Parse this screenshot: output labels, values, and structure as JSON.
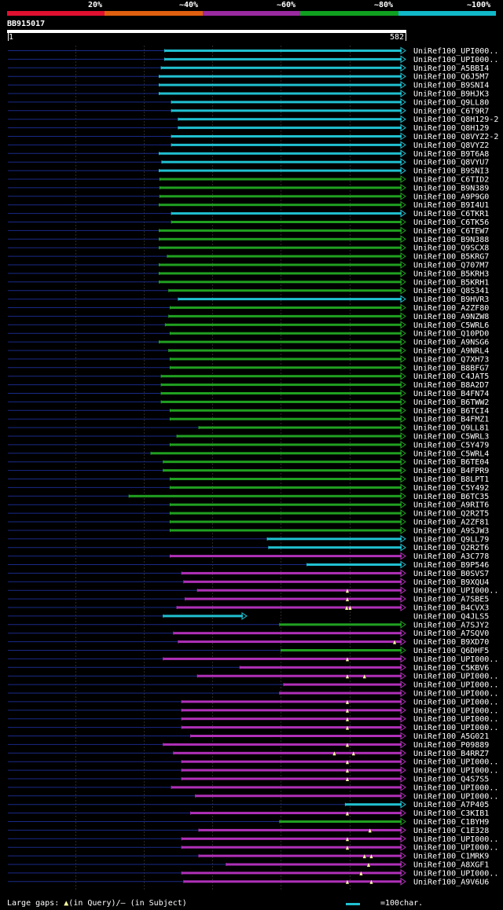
{
  "colors": {
    "bg": "#000000",
    "grid": "#2a2a2a",
    "leader": "#1a2a88",
    "segments": [
      "#e01030",
      "#e06010",
      "#9a2aa0",
      "#10a020",
      "#10b8c8"
    ],
    "byIdentity": {
      "magenta": "#b030b8",
      "green": "#20a020",
      "cyan": "#20c0d0"
    },
    "gapMarker": "#ffffa0"
  },
  "legend": {
    "identity_labels": [
      "20%",
      "~40%",
      "~60%",
      "~80%",
      "~100%"
    ],
    "large_gaps_label": "Large gaps:",
    "query_part": "(in Query)/",
    "subject_part": "– (in Subject)",
    "scale_label": "=100char."
  },
  "query": {
    "id": "BB915017",
    "start_label": "1",
    "end_label": "582"
  },
  "chart_data": {
    "type": "bar",
    "x_axis": {
      "min": 1,
      "max": 582
    },
    "grid_ticks": [
      100,
      200,
      300,
      400,
      500
    ],
    "hits": [
      {
        "name": "UniRef100_UPI000..",
        "start": 230,
        "end": 582,
        "cls": "cyan",
        "arrow": true,
        "gaps": []
      },
      {
        "name": "UniRef100_UPI000..",
        "start": 230,
        "end": 582,
        "cls": "cyan",
        "arrow": true,
        "gaps": []
      },
      {
        "name": "UniRef100_A5BBI4",
        "start": 225,
        "end": 582,
        "cls": "cyan",
        "arrow": true,
        "gaps": []
      },
      {
        "name": "UniRef100_Q6J5M7",
        "start": 222,
        "end": 582,
        "cls": "cyan",
        "arrow": true,
        "gaps": []
      },
      {
        "name": "UniRef100_B9SNI4",
        "start": 222,
        "end": 582,
        "cls": "cyan",
        "arrow": true,
        "gaps": []
      },
      {
        "name": "UniRef100_B9HJK3",
        "start": 222,
        "end": 582,
        "cls": "cyan",
        "arrow": true,
        "gaps": []
      },
      {
        "name": "UniRef100_Q9LL80",
        "start": 240,
        "end": 582,
        "cls": "cyan",
        "arrow": true,
        "gaps": []
      },
      {
        "name": "UniRef100_C6T9R7",
        "start": 240,
        "end": 582,
        "cls": "cyan",
        "arrow": true,
        "gaps": []
      },
      {
        "name": "UniRef100_Q8H129-2",
        "start": 250,
        "end": 582,
        "cls": "cyan",
        "arrow": true,
        "gaps": []
      },
      {
        "name": "UniRef100_Q8H129",
        "start": 250,
        "end": 582,
        "cls": "cyan",
        "arrow": true,
        "gaps": []
      },
      {
        "name": "UniRef100_Q8VYZ2-2",
        "start": 240,
        "end": 582,
        "cls": "cyan",
        "arrow": true,
        "gaps": []
      },
      {
        "name": "UniRef100_Q8VYZ2",
        "start": 240,
        "end": 582,
        "cls": "cyan",
        "arrow": true,
        "gaps": []
      },
      {
        "name": "UniRef100_B9T6A8",
        "start": 222,
        "end": 582,
        "cls": "cyan",
        "arrow": true,
        "gaps": []
      },
      {
        "name": "UniRef100_Q8VYU7",
        "start": 226,
        "end": 582,
        "cls": "cyan",
        "arrow": true,
        "gaps": []
      },
      {
        "name": "UniRef100_B9SNI3",
        "start": 222,
        "end": 582,
        "cls": "cyan",
        "arrow": true,
        "gaps": []
      },
      {
        "name": "UniRef100_C6TID2",
        "start": 223,
        "end": 582,
        "cls": "green",
        "arrow": true,
        "gaps": []
      },
      {
        "name": "UniRef100_B9N389",
        "start": 223,
        "end": 582,
        "cls": "green",
        "arrow": true,
        "gaps": []
      },
      {
        "name": "UniRef100_A9P9G0",
        "start": 223,
        "end": 582,
        "cls": "green",
        "arrow": true,
        "gaps": []
      },
      {
        "name": "UniRef100_B9I4U1",
        "start": 222,
        "end": 582,
        "cls": "green",
        "arrow": true,
        "gaps": []
      },
      {
        "name": "UniRef100_C6TKR1",
        "start": 240,
        "end": 582,
        "cls": "cyan",
        "arrow": true,
        "gaps": []
      },
      {
        "name": "UniRef100_C6TK56",
        "start": 240,
        "end": 582,
        "cls": "green",
        "arrow": true,
        "gaps": []
      },
      {
        "name": "UniRef100_C6TEW7",
        "start": 222,
        "end": 582,
        "cls": "green",
        "arrow": true,
        "gaps": []
      },
      {
        "name": "UniRef100_B9N388",
        "start": 222,
        "end": 582,
        "cls": "green",
        "arrow": true,
        "gaps": []
      },
      {
        "name": "UniRef100_Q9SCX8",
        "start": 222,
        "end": 582,
        "cls": "green",
        "arrow": true,
        "gaps": []
      },
      {
        "name": "UniRef100_B5KRG7",
        "start": 234,
        "end": 582,
        "cls": "green",
        "arrow": true,
        "gaps": []
      },
      {
        "name": "UniRef100_Q707M7",
        "start": 222,
        "end": 582,
        "cls": "green",
        "arrow": true,
        "gaps": []
      },
      {
        "name": "UniRef100_B5KRH3",
        "start": 222,
        "end": 582,
        "cls": "green",
        "arrow": true,
        "gaps": []
      },
      {
        "name": "UniRef100_B5KRH1",
        "start": 222,
        "end": 582,
        "cls": "green",
        "arrow": true,
        "gaps": []
      },
      {
        "name": "UniRef100_Q8S341",
        "start": 236,
        "end": 582,
        "cls": "green",
        "arrow": true,
        "gaps": []
      },
      {
        "name": "UniRef100_B9HVR3",
        "start": 250,
        "end": 582,
        "cls": "cyan",
        "arrow": true,
        "gaps": []
      },
      {
        "name": "UniRef100_A2ZF80",
        "start": 238,
        "end": 582,
        "cls": "green",
        "arrow": true,
        "gaps": []
      },
      {
        "name": "UniRef100_A9NZW8",
        "start": 236,
        "end": 582,
        "cls": "green",
        "arrow": true,
        "gaps": []
      },
      {
        "name": "UniRef100_C5WRL6",
        "start": 231,
        "end": 582,
        "cls": "green",
        "arrow": true,
        "gaps": []
      },
      {
        "name": "UniRef100_Q10PD0",
        "start": 238,
        "end": 582,
        "cls": "green",
        "arrow": true,
        "gaps": []
      },
      {
        "name": "UniRef100_A9NSG6",
        "start": 222,
        "end": 582,
        "cls": "green",
        "arrow": true,
        "gaps": []
      },
      {
        "name": "UniRef100_A9NRL4",
        "start": 236,
        "end": 582,
        "cls": "green",
        "arrow": true,
        "gaps": []
      },
      {
        "name": "UniRef100_Q7XH73",
        "start": 238,
        "end": 582,
        "cls": "green",
        "arrow": true,
        "gaps": []
      },
      {
        "name": "UniRef100_B8BFG7",
        "start": 238,
        "end": 582,
        "cls": "green",
        "arrow": true,
        "gaps": []
      },
      {
        "name": "UniRef100_C4JAT5",
        "start": 225,
        "end": 582,
        "cls": "green",
        "arrow": true,
        "gaps": []
      },
      {
        "name": "UniRef100_B8A2D7",
        "start": 225,
        "end": 582,
        "cls": "green",
        "arrow": true,
        "gaps": []
      },
      {
        "name": "UniRef100_B4FN74",
        "start": 225,
        "end": 582,
        "cls": "green",
        "arrow": true,
        "gaps": []
      },
      {
        "name": "UniRef100_B6TWW2",
        "start": 225,
        "end": 582,
        "cls": "green",
        "arrow": true,
        "gaps": []
      },
      {
        "name": "UniRef100_B6TCI4",
        "start": 238,
        "end": 582,
        "cls": "green",
        "arrow": true,
        "gaps": []
      },
      {
        "name": "UniRef100_B4FMZ1",
        "start": 238,
        "end": 582,
        "cls": "green",
        "arrow": true,
        "gaps": []
      },
      {
        "name": "UniRef100_Q9LL81",
        "start": 280,
        "end": 582,
        "cls": "green",
        "arrow": true,
        "gaps": []
      },
      {
        "name": "UniRef100_C5WRL3",
        "start": 248,
        "end": 582,
        "cls": "green",
        "arrow": true,
        "gaps": []
      },
      {
        "name": "UniRef100_C5Y479",
        "start": 238,
        "end": 582,
        "cls": "green",
        "arrow": true,
        "gaps": []
      },
      {
        "name": "UniRef100_C5WRL4",
        "start": 210,
        "end": 582,
        "cls": "green",
        "arrow": true,
        "gaps": []
      },
      {
        "name": "UniRef100_B6TE04",
        "start": 228,
        "end": 582,
        "cls": "green",
        "arrow": true,
        "gaps": []
      },
      {
        "name": "UniRef100_B4FPR9",
        "start": 228,
        "end": 582,
        "cls": "green",
        "arrow": true,
        "gaps": []
      },
      {
        "name": "UniRef100_B8LPT1",
        "start": 238,
        "end": 582,
        "cls": "green",
        "arrow": true,
        "gaps": []
      },
      {
        "name": "UniRef100_C5Y492",
        "start": 238,
        "end": 582,
        "cls": "green",
        "arrow": true,
        "gaps": []
      },
      {
        "name": "UniRef100_B6TC35",
        "start": 178,
        "end": 582,
        "cls": "green",
        "arrow": true,
        "gaps": []
      },
      {
        "name": "UniRef100_A9RIT6",
        "start": 238,
        "end": 582,
        "cls": "green",
        "arrow": true,
        "gaps": []
      },
      {
        "name": "UniRef100_Q2R2T5",
        "start": 238,
        "end": 582,
        "cls": "green",
        "arrow": true,
        "gaps": []
      },
      {
        "name": "UniRef100_A2ZF81",
        "start": 238,
        "end": 582,
        "cls": "green",
        "arrow": true,
        "gaps": []
      },
      {
        "name": "UniRef100_A9SJW3",
        "start": 238,
        "end": 582,
        "cls": "green",
        "arrow": true,
        "gaps": []
      },
      {
        "name": "UniRef100_Q9LL79",
        "start": 380,
        "end": 582,
        "cls": "cyan",
        "arrow": true,
        "gaps": []
      },
      {
        "name": "UniRef100_Q2R2T6",
        "start": 382,
        "end": 582,
        "cls": "cyan",
        "arrow": true,
        "gaps": []
      },
      {
        "name": "UniRef100_A3C778",
        "start": 238,
        "end": 582,
        "cls": "magenta",
        "arrow": true,
        "gaps": []
      },
      {
        "name": "UniRef100_B9P546",
        "start": 438,
        "end": 582,
        "cls": "cyan",
        "arrow": true,
        "gaps": []
      },
      {
        "name": "UniRef100_B0SVS7",
        "start": 255,
        "end": 582,
        "cls": "magenta",
        "arrow": true,
        "gaps": []
      },
      {
        "name": "UniRef100_B9XQU4",
        "start": 258,
        "end": 582,
        "cls": "magenta",
        "arrow": true,
        "gaps": []
      },
      {
        "name": "UniRef100_UPI000..",
        "start": 278,
        "end": 582,
        "cls": "magenta",
        "arrow": true,
        "gaps": [
          497
        ]
      },
      {
        "name": "UniRef100_A7SBE5",
        "start": 260,
        "end": 582,
        "cls": "magenta",
        "arrow": true,
        "gaps": [
          497
        ]
      },
      {
        "name": "UniRef100_B4CVX3",
        "start": 248,
        "end": 582,
        "cls": "magenta",
        "arrow": true,
        "gaps": [
          496,
          501
        ]
      },
      {
        "name": "UniRef100_Q4JLS5",
        "start": 228,
        "end": 350,
        "cls": "cyan",
        "arrow": true,
        "gaps": []
      },
      {
        "name": "UniRef100_A7SJY2",
        "start": 398,
        "end": 582,
        "cls": "green",
        "arrow": true,
        "gaps": []
      },
      {
        "name": "UniRef100_A7SQV0",
        "start": 243,
        "end": 582,
        "cls": "magenta",
        "arrow": true,
        "gaps": []
      },
      {
        "name": "UniRef100_B9XD70",
        "start": 250,
        "end": 582,
        "cls": "magenta",
        "arrow": true,
        "gaps": [
          566
        ]
      },
      {
        "name": "UniRef100_Q6DHF5",
        "start": 400,
        "end": 582,
        "cls": "green",
        "arrow": true,
        "gaps": []
      },
      {
        "name": "UniRef100_UPI000..",
        "start": 228,
        "end": 582,
        "cls": "magenta",
        "arrow": true,
        "gaps": [
          497
        ]
      },
      {
        "name": "UniRef100_C5KBV6",
        "start": 340,
        "end": 582,
        "cls": "magenta",
        "arrow": true,
        "gaps": []
      },
      {
        "name": "UniRef100_UPI000..",
        "start": 278,
        "end": 582,
        "cls": "magenta",
        "arrow": true,
        "gaps": [
          497,
          522
        ]
      },
      {
        "name": "UniRef100_UPI000..",
        "start": 404,
        "end": 582,
        "cls": "magenta",
        "arrow": true,
        "gaps": []
      },
      {
        "name": "UniRef100_UPI000..",
        "start": 398,
        "end": 582,
        "cls": "magenta",
        "arrow": true,
        "gaps": []
      },
      {
        "name": "UniRef100_UPI000..",
        "start": 255,
        "end": 582,
        "cls": "magenta",
        "arrow": true,
        "gaps": [
          497
        ]
      },
      {
        "name": "UniRef100_UPI000..",
        "start": 255,
        "end": 582,
        "cls": "magenta",
        "arrow": true,
        "gaps": [
          497
        ]
      },
      {
        "name": "UniRef100_UPI000..",
        "start": 255,
        "end": 582,
        "cls": "magenta",
        "arrow": true,
        "gaps": [
          497
        ]
      },
      {
        "name": "UniRef100_UPI000..",
        "start": 255,
        "end": 582,
        "cls": "magenta",
        "arrow": true,
        "gaps": [
          497
        ]
      },
      {
        "name": "UniRef100_A5G021",
        "start": 268,
        "end": 582,
        "cls": "magenta",
        "arrow": true,
        "gaps": []
      },
      {
        "name": "UniRef100_P09889",
        "start": 228,
        "end": 582,
        "cls": "magenta",
        "arrow": true,
        "gaps": [
          497
        ]
      },
      {
        "name": "UniRef100_B4RRZ7",
        "start": 243,
        "end": 582,
        "cls": "magenta",
        "arrow": true,
        "gaps": [
          478,
          506
        ]
      },
      {
        "name": "UniRef100_UPI000..",
        "start": 255,
        "end": 582,
        "cls": "magenta",
        "arrow": true,
        "gaps": [
          497
        ]
      },
      {
        "name": "UniRef100_UPI000..",
        "start": 255,
        "end": 582,
        "cls": "magenta",
        "arrow": true,
        "gaps": [
          497
        ]
      },
      {
        "name": "UniRef100_Q4S7S5",
        "start": 255,
        "end": 582,
        "cls": "magenta",
        "arrow": true,
        "gaps": [
          497
        ]
      },
      {
        "name": "UniRef100_UPI000..",
        "start": 240,
        "end": 582,
        "cls": "magenta",
        "arrow": true,
        "gaps": []
      },
      {
        "name": "UniRef100_UPI000..",
        "start": 275,
        "end": 582,
        "cls": "magenta",
        "arrow": true,
        "gaps": []
      },
      {
        "name": "UniRef100_A7P405",
        "start": 494,
        "end": 582,
        "cls": "cyan",
        "arrow": true,
        "gaps": []
      },
      {
        "name": "UniRef100_C3KIB1",
        "start": 268,
        "end": 582,
        "cls": "magenta",
        "arrow": true,
        "gaps": [
          497
        ]
      },
      {
        "name": "UniRef100_C1BYH9",
        "start": 398,
        "end": 582,
        "cls": "green",
        "arrow": true,
        "gaps": []
      },
      {
        "name": "UniRef100_C1E328",
        "start": 280,
        "end": 582,
        "cls": "magenta",
        "arrow": true,
        "gaps": [
          530
        ]
      },
      {
        "name": "UniRef100_UPI000..",
        "start": 255,
        "end": 582,
        "cls": "magenta",
        "arrow": true,
        "gaps": [
          497
        ]
      },
      {
        "name": "UniRef100_UPI000..",
        "start": 255,
        "end": 582,
        "cls": "magenta",
        "arrow": true,
        "gaps": [
          497
        ]
      },
      {
        "name": "UniRef100_C1MRK9",
        "start": 280,
        "end": 582,
        "cls": "magenta",
        "arrow": true,
        "gaps": [
          522,
          532
        ]
      },
      {
        "name": "UniRef100_A8XGF1",
        "start": 320,
        "end": 582,
        "cls": "magenta",
        "arrow": true,
        "gaps": [
          528
        ]
      },
      {
        "name": "UniRef100_UPI000..",
        "start": 255,
        "end": 582,
        "cls": "magenta",
        "arrow": true,
        "gaps": [
          517
        ]
      },
      {
        "name": "UniRef100_A9V6U6",
        "start": 258,
        "end": 582,
        "cls": "magenta",
        "arrow": true,
        "gaps": [
          497,
          532
        ]
      }
    ]
  }
}
